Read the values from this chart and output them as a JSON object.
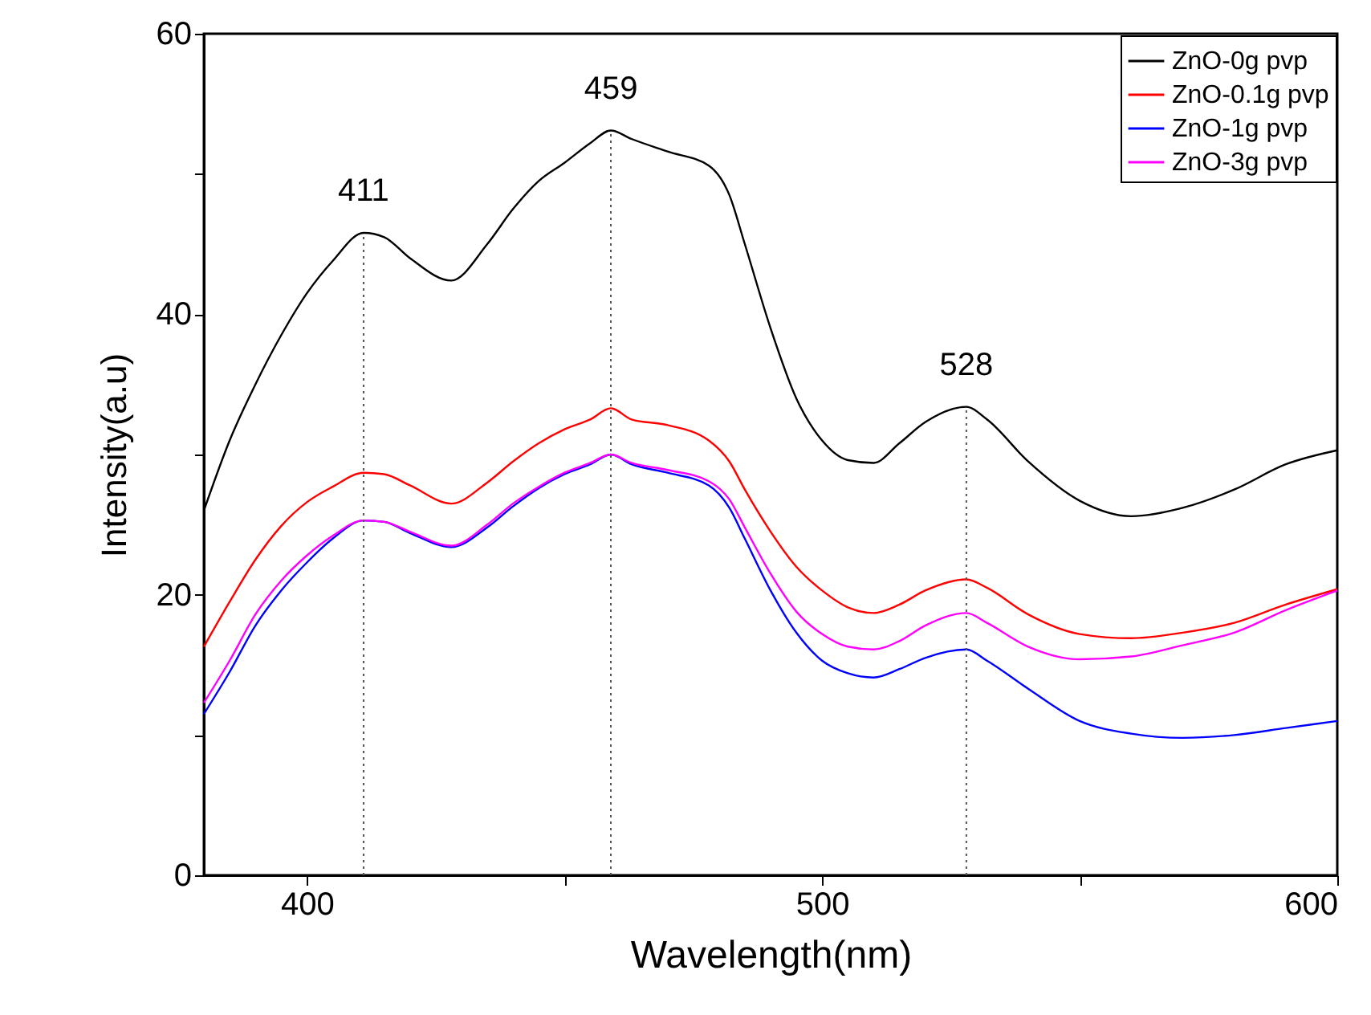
{
  "chart_data": {
    "type": "line",
    "xlabel": "Wavelength(nm)",
    "ylabel": "Intensity(a.u)",
    "x": [
      380,
      385,
      390,
      395,
      400,
      405,
      411,
      415,
      420,
      428,
      435,
      440,
      445,
      450,
      455,
      459,
      463,
      470,
      478,
      482,
      485,
      490,
      495,
      500,
      505,
      510,
      515,
      520,
      528,
      532,
      540,
      550,
      560,
      570,
      580,
      590,
      600
    ],
    "series": [
      {
        "name": "ZnO-0g pvp",
        "color": "#000000",
        "values": [
          26,
          31,
          35,
          38.5,
          41.5,
          43.8,
          45.8,
          45.5,
          44,
          42.4,
          45,
          47.5,
          49.5,
          50.8,
          52.2,
          53.1,
          52.5,
          51.6,
          50.6,
          48.5,
          45,
          39,
          34,
          31,
          29.6,
          29.4,
          30.8,
          32.3,
          33.4,
          32.5,
          29.5,
          26.7,
          25.6,
          26.2,
          27.5,
          29.3,
          30.3
        ]
      },
      {
        "name": "ZnO-0.1g pvp",
        "color": "#ff0000",
        "values": [
          16.3,
          19.5,
          22.5,
          24.9,
          26.6,
          27.7,
          28.7,
          28.6,
          27.8,
          26.5,
          28,
          29.5,
          30.8,
          31.8,
          32.5,
          33.3,
          32.5,
          32.1,
          31,
          29.5,
          27.5,
          24.5,
          22,
          20.3,
          19.1,
          18.7,
          19.3,
          20.3,
          21.1,
          20.5,
          18.6,
          17.2,
          16.9,
          17.3,
          18,
          19.3,
          20.4
        ]
      },
      {
        "name": "ZnO-1g pvp",
        "color": "#0000ff",
        "values": [
          11.5,
          14.5,
          17.8,
          20.3,
          22.3,
          24,
          25.3,
          25.2,
          24.4,
          23.4,
          24.8,
          26.3,
          27.6,
          28.6,
          29.3,
          30,
          29.3,
          28.7,
          27.8,
          26.2,
          24,
          20.3,
          17.3,
          15.3,
          14.4,
          14.1,
          14.7,
          15.5,
          16.1,
          15.3,
          13.3,
          11,
          10.1,
          9.8,
          10,
          10.5,
          11
        ]
      },
      {
        "name": "ZnO-3g pvp",
        "color": "#ff00ff",
        "values": [
          12.3,
          15.3,
          18.6,
          21,
          22.8,
          24.2,
          25.3,
          25.2,
          24.5,
          23.5,
          25,
          26.5,
          27.7,
          28.7,
          29.4,
          30,
          29.4,
          28.9,
          28.1,
          26.8,
          24.8,
          21.5,
          18.8,
          17.2,
          16.3,
          16.1,
          16.7,
          17.8,
          18.7,
          18,
          16.3,
          15.4,
          15.6,
          16.4,
          17.3,
          18.9,
          20.3
        ]
      }
    ],
    "xlim": [
      380,
      600
    ],
    "xticks": [
      400,
      {
        "value": 450,
        "label": null
      },
      500,
      {
        "value": 550,
        "label": null
      },
      600
    ],
    "ylim": [
      0,
      60
    ],
    "yticks": [
      0,
      {
        "value": 10,
        "label": null
      },
      20,
      {
        "value": 30,
        "label": null
      },
      40,
      {
        "value": 50,
        "label": null
      },
      60
    ],
    "ref_lines": [
      {
        "axis": "x",
        "value": 411,
        "line_style": "dotted"
      },
      {
        "axis": "x",
        "value": 459,
        "line_style": "dotted"
      },
      {
        "axis": "x",
        "value": 528,
        "line_style": "dotted"
      }
    ],
    "annotations": [
      {
        "text": "411",
        "x": 411,
        "y": 45.8
      },
      {
        "text": "459",
        "x": 459,
        "y": 53.1
      },
      {
        "text": "528",
        "x": 528,
        "y": 33.4
      }
    ],
    "legend": "top right"
  }
}
